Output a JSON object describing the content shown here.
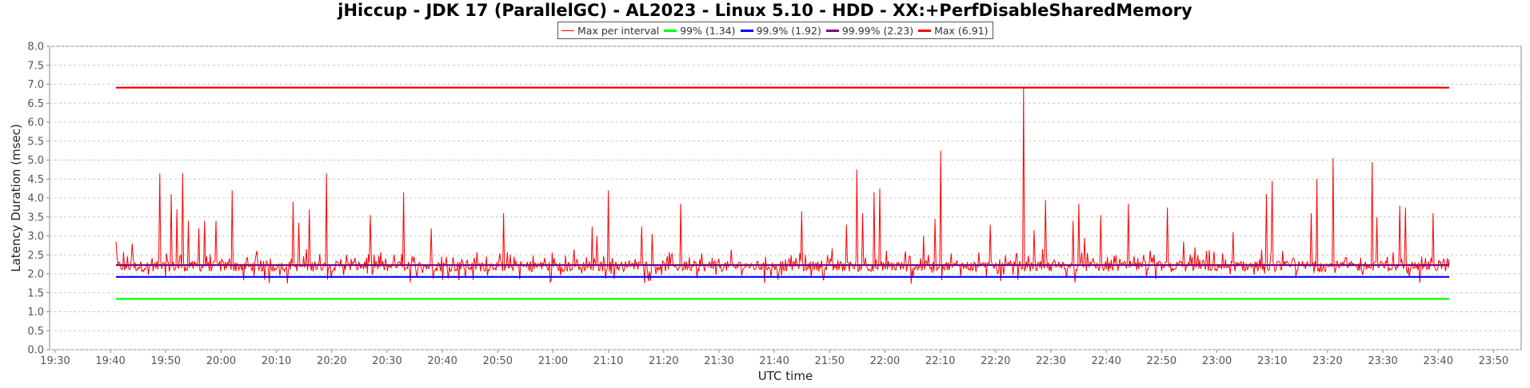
{
  "chart_data": {
    "type": "line",
    "title": "jHiccup - JDK 17 (ParallelGC) - AL2023 - Linux 5.10 - HDD - XX:+PerfDisableSharedMemory",
    "xlabel": "UTC time",
    "ylabel": "Latency Duration (msec)",
    "ylim": [
      0.0,
      8.0
    ],
    "yticks": [
      "0.0",
      "0.5",
      "1.0",
      "1.5",
      "2.0",
      "2.5",
      "3.0",
      "3.5",
      "4.0",
      "4.5",
      "5.0",
      "5.5",
      "6.0",
      "6.5",
      "7.0",
      "7.5",
      "8.0"
    ],
    "xlim": [
      "19:29",
      "23:55"
    ],
    "xticks": [
      "19:30",
      "19:40",
      "19:50",
      "20:00",
      "20:10",
      "20:20",
      "20:30",
      "20:40",
      "20:50",
      "21:00",
      "21:10",
      "21:20",
      "21:30",
      "21:40",
      "21:50",
      "22:00",
      "22:10",
      "22:20",
      "22:30",
      "22:40",
      "22:50",
      "23:00",
      "23:10",
      "23:20",
      "23:30",
      "23:40",
      "23:50"
    ],
    "grid": true,
    "legend_position": "top-center",
    "series": [
      {
        "name": "Max per interval",
        "color": "#ff0000",
        "baseline": 2.2,
        "x_start": "19:41",
        "x_end": "23:42",
        "spikes": [
          {
            "x": "19:41",
            "y": 2.85
          },
          {
            "x": "19:44",
            "y": 2.8
          },
          {
            "x": "19:49",
            "y": 4.65
          },
          {
            "x": "19:51",
            "y": 4.1
          },
          {
            "x": "19:52",
            "y": 3.7
          },
          {
            "x": "19:53",
            "y": 4.65
          },
          {
            "x": "19:54",
            "y": 3.4
          },
          {
            "x": "19:56",
            "y": 3.2
          },
          {
            "x": "19:57",
            "y": 3.4
          },
          {
            "x": "19:59",
            "y": 3.4
          },
          {
            "x": "20:02",
            "y": 4.2
          },
          {
            "x": "20:13",
            "y": 3.9
          },
          {
            "x": "20:14",
            "y": 3.35
          },
          {
            "x": "20:16",
            "y": 3.7
          },
          {
            "x": "20:19",
            "y": 4.65
          },
          {
            "x": "20:27",
            "y": 3.55
          },
          {
            "x": "20:33",
            "y": 4.15
          },
          {
            "x": "20:38",
            "y": 3.2
          },
          {
            "x": "20:51",
            "y": 3.6
          },
          {
            "x": "21:07",
            "y": 3.25
          },
          {
            "x": "21:08",
            "y": 3.0
          },
          {
            "x": "21:10",
            "y": 4.2
          },
          {
            "x": "21:16",
            "y": 3.25
          },
          {
            "x": "21:18",
            "y": 3.05
          },
          {
            "x": "21:23",
            "y": 3.85
          },
          {
            "x": "21:45",
            "y": 3.65
          },
          {
            "x": "21:53",
            "y": 3.3
          },
          {
            "x": "21:55",
            "y": 4.75
          },
          {
            "x": "21:56",
            "y": 3.6
          },
          {
            "x": "21:58",
            "y": 4.15
          },
          {
            "x": "21:59",
            "y": 4.25
          },
          {
            "x": "22:07",
            "y": 3.0
          },
          {
            "x": "22:09",
            "y": 3.45
          },
          {
            "x": "22:10",
            "y": 5.25
          },
          {
            "x": "22:19",
            "y": 3.3
          },
          {
            "x": "22:25",
            "y": 6.91
          },
          {
            "x": "22:27",
            "y": 3.15
          },
          {
            "x": "22:29",
            "y": 3.95
          },
          {
            "x": "22:34",
            "y": 3.4
          },
          {
            "x": "22:35",
            "y": 3.85
          },
          {
            "x": "22:36",
            "y": 2.95
          },
          {
            "x": "22:39",
            "y": 3.55
          },
          {
            "x": "22:44",
            "y": 3.85
          },
          {
            "x": "22:51",
            "y": 3.75
          },
          {
            "x": "22:54",
            "y": 2.85
          },
          {
            "x": "22:56",
            "y": 2.7
          },
          {
            "x": "23:03",
            "y": 3.1
          },
          {
            "x": "23:09",
            "y": 4.1
          },
          {
            "x": "23:10",
            "y": 4.45
          },
          {
            "x": "23:17",
            "y": 3.6
          },
          {
            "x": "23:18",
            "y": 4.5
          },
          {
            "x": "23:21",
            "y": 5.05
          },
          {
            "x": "23:28",
            "y": 4.95
          },
          {
            "x": "23:29",
            "y": 3.5
          },
          {
            "x": "23:33",
            "y": 3.8
          },
          {
            "x": "23:34",
            "y": 3.75
          },
          {
            "x": "23:39",
            "y": 3.6
          }
        ]
      },
      {
        "name": "99%",
        "percentile": "99%",
        "value": 1.34,
        "color": "#00ff00",
        "x_start": "19:41",
        "x_end": "23:42"
      },
      {
        "name": "99.9%",
        "percentile": "99.9%",
        "value": 1.92,
        "color": "#0000ff",
        "x_start": "19:41",
        "x_end": "23:42"
      },
      {
        "name": "99.99%",
        "percentile": "99.99%",
        "value": 2.23,
        "color": "#800080",
        "x_start": "19:41",
        "x_end": "23:42"
      },
      {
        "name": "Max",
        "percentile": "Max",
        "value": 6.91,
        "color": "#ff0000",
        "x_start": "19:41",
        "x_end": "23:42"
      }
    ],
    "legend": [
      {
        "label": "Max per interval",
        "color": "#ff0000"
      },
      {
        "label": "99% (1.34)",
        "color": "#00ff00"
      },
      {
        "label": "99.9% (1.92)",
        "color": "#0000ff"
      },
      {
        "label": "99.99% (2.23)",
        "color": "#800080"
      },
      {
        "label": "Max (6.91)",
        "color": "#ff0000"
      }
    ]
  }
}
